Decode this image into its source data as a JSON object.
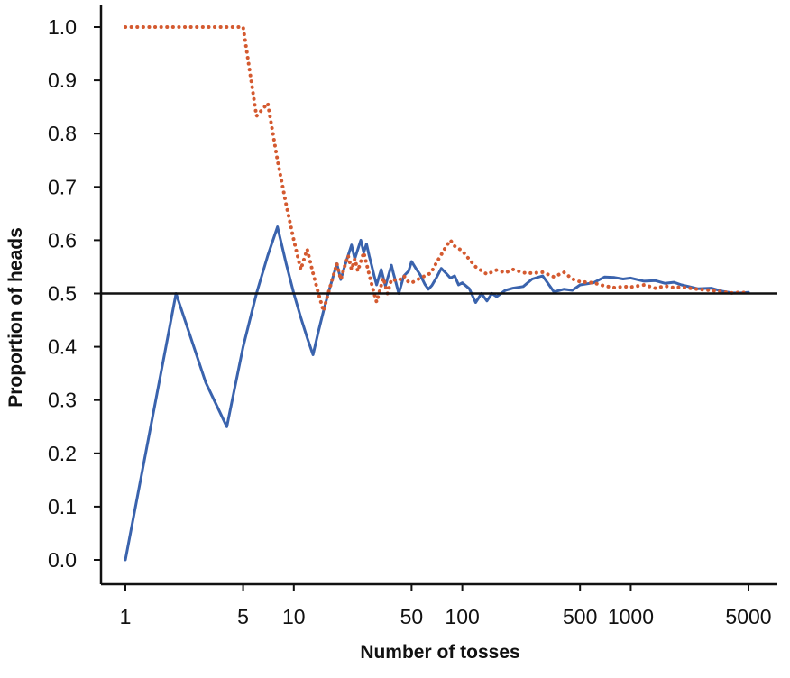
{
  "chart_data": {
    "type": "line",
    "title": "",
    "xlabel": "Number of tosses",
    "ylabel": "Proportion of  heads",
    "x_scale": "log",
    "xlim": [
      1,
      7000
    ],
    "ylim": [
      0.0,
      1.0
    ],
    "x_ticks": [
      "1",
      "5",
      "10",
      "50",
      "100",
      "500",
      "1000",
      "5000"
    ],
    "y_ticks": [
      "0.0",
      "0.1",
      "0.2",
      "0.3",
      "0.4",
      "0.5",
      "0.6",
      "0.7",
      "0.8",
      "0.9",
      "1.0"
    ],
    "reference_line": {
      "y": 0.5,
      "color": "#111111"
    },
    "grid": false,
    "series": [
      {
        "color": "#3a63ad",
        "style": "solid",
        "points": [
          [
            1,
            0.0
          ],
          [
            2,
            0.5
          ],
          [
            3,
            0.333
          ],
          [
            4,
            0.25
          ],
          [
            5,
            0.4
          ],
          [
            6,
            0.5
          ],
          [
            7,
            0.571
          ],
          [
            8,
            0.625
          ],
          [
            9,
            0.556
          ],
          [
            10,
            0.5
          ],
          [
            11,
            0.455
          ],
          [
            12,
            0.417
          ],
          [
            13,
            0.385
          ],
          [
            14,
            0.429
          ],
          [
            15,
            0.467
          ],
          [
            16,
            0.5
          ],
          [
            17,
            0.529
          ],
          [
            18,
            0.556
          ],
          [
            19,
            0.526
          ],
          [
            20,
            0.55
          ],
          [
            21,
            0.571
          ],
          [
            22,
            0.591
          ],
          [
            23,
            0.565
          ],
          [
            24,
            0.583
          ],
          [
            25,
            0.6
          ],
          [
            26,
            0.577
          ],
          [
            27,
            0.593
          ],
          [
            28,
            0.571
          ],
          [
            29,
            0.552
          ],
          [
            30,
            0.533
          ],
          [
            31,
            0.516
          ],
          [
            32,
            0.531
          ],
          [
            33,
            0.545
          ],
          [
            34,
            0.529
          ],
          [
            35,
            0.514
          ],
          [
            36,
            0.528
          ],
          [
            37,
            0.541
          ],
          [
            38,
            0.553
          ],
          [
            39,
            0.538
          ],
          [
            40,
            0.525
          ],
          [
            42,
            0.5
          ],
          [
            45,
            0.533
          ],
          [
            48,
            0.542
          ],
          [
            50,
            0.56
          ],
          [
            53,
            0.547
          ],
          [
            56,
            0.536
          ],
          [
            60,
            0.517
          ],
          [
            63,
            0.508
          ],
          [
            66,
            0.515
          ],
          [
            70,
            0.529
          ],
          [
            75,
            0.547
          ],
          [
            80,
            0.538
          ],
          [
            85,
            0.529
          ],
          [
            90,
            0.533
          ],
          [
            95,
            0.516
          ],
          [
            100,
            0.52
          ],
          [
            110,
            0.509
          ],
          [
            120,
            0.483
          ],
          [
            130,
            0.5
          ],
          [
            140,
            0.486
          ],
          [
            150,
            0.5
          ],
          [
            160,
            0.494
          ],
          [
            180,
            0.506
          ],
          [
            200,
            0.51
          ],
          [
            230,
            0.513
          ],
          [
            260,
            0.527
          ],
          [
            300,
            0.533
          ],
          [
            350,
            0.503
          ],
          [
            400,
            0.508
          ],
          [
            450,
            0.506
          ],
          [
            500,
            0.516
          ],
          [
            600,
            0.52
          ],
          [
            700,
            0.531
          ],
          [
            800,
            0.53
          ],
          [
            900,
            0.527
          ],
          [
            1000,
            0.529
          ],
          [
            1200,
            0.523
          ],
          [
            1400,
            0.524
          ],
          [
            1600,
            0.519
          ],
          [
            1800,
            0.521
          ],
          [
            2000,
            0.516
          ],
          [
            2500,
            0.509
          ],
          [
            3000,
            0.51
          ],
          [
            3500,
            0.504
          ],
          [
            4000,
            0.501
          ],
          [
            4500,
            0.501
          ],
          [
            5000,
            0.502
          ]
        ]
      },
      {
        "color": "#d45a30",
        "style": "dotted",
        "points": [
          [
            1,
            1.0
          ],
          [
            2,
            1.0
          ],
          [
            3,
            1.0
          ],
          [
            4,
            1.0
          ],
          [
            5,
            1.0
          ],
          [
            6,
            0.833
          ],
          [
            7,
            0.857
          ],
          [
            8,
            0.75
          ],
          [
            9,
            0.667
          ],
          [
            10,
            0.6
          ],
          [
            11,
            0.545
          ],
          [
            12,
            0.583
          ],
          [
            13,
            0.538
          ],
          [
            14,
            0.5
          ],
          [
            15,
            0.467
          ],
          [
            16,
            0.5
          ],
          [
            17,
            0.529
          ],
          [
            18,
            0.556
          ],
          [
            19,
            0.526
          ],
          [
            20,
            0.55
          ],
          [
            21,
            0.571
          ],
          [
            22,
            0.545
          ],
          [
            23,
            0.565
          ],
          [
            24,
            0.542
          ],
          [
            25,
            0.56
          ],
          [
            26,
            0.577
          ],
          [
            27,
            0.556
          ],
          [
            28,
            0.536
          ],
          [
            29,
            0.517
          ],
          [
            30,
            0.5
          ],
          [
            31,
            0.484
          ],
          [
            32,
            0.5
          ],
          [
            33,
            0.515
          ],
          [
            34,
            0.529
          ],
          [
            35,
            0.514
          ],
          [
            36,
            0.5
          ],
          [
            37,
            0.514
          ],
          [
            38,
            0.526
          ],
          [
            40,
            0.525
          ],
          [
            42,
            0.524
          ],
          [
            45,
            0.533
          ],
          [
            48,
            0.521
          ],
          [
            50,
            0.52
          ],
          [
            55,
            0.527
          ],
          [
            60,
            0.533
          ],
          [
            65,
            0.538
          ],
          [
            70,
            0.557
          ],
          [
            75,
            0.573
          ],
          [
            80,
            0.588
          ],
          [
            85,
            0.6
          ],
          [
            90,
            0.589
          ],
          [
            100,
            0.58
          ],
          [
            110,
            0.564
          ],
          [
            120,
            0.55
          ],
          [
            140,
            0.536
          ],
          [
            160,
            0.544
          ],
          [
            180,
            0.539
          ],
          [
            200,
            0.545
          ],
          [
            230,
            0.539
          ],
          [
            260,
            0.538
          ],
          [
            300,
            0.54
          ],
          [
            350,
            0.531
          ],
          [
            400,
            0.54
          ],
          [
            450,
            0.527
          ],
          [
            500,
            0.522
          ],
          [
            600,
            0.52
          ],
          [
            700,
            0.514
          ],
          [
            800,
            0.511
          ],
          [
            900,
            0.513
          ],
          [
            1000,
            0.512
          ],
          [
            1200,
            0.516
          ],
          [
            1400,
            0.51
          ],
          [
            1600,
            0.514
          ],
          [
            1800,
            0.511
          ],
          [
            2000,
            0.512
          ],
          [
            2500,
            0.508
          ],
          [
            3000,
            0.506
          ],
          [
            3500,
            0.503
          ],
          [
            4000,
            0.501
          ],
          [
            4500,
            0.502
          ],
          [
            5000,
            0.501
          ]
        ]
      }
    ]
  }
}
